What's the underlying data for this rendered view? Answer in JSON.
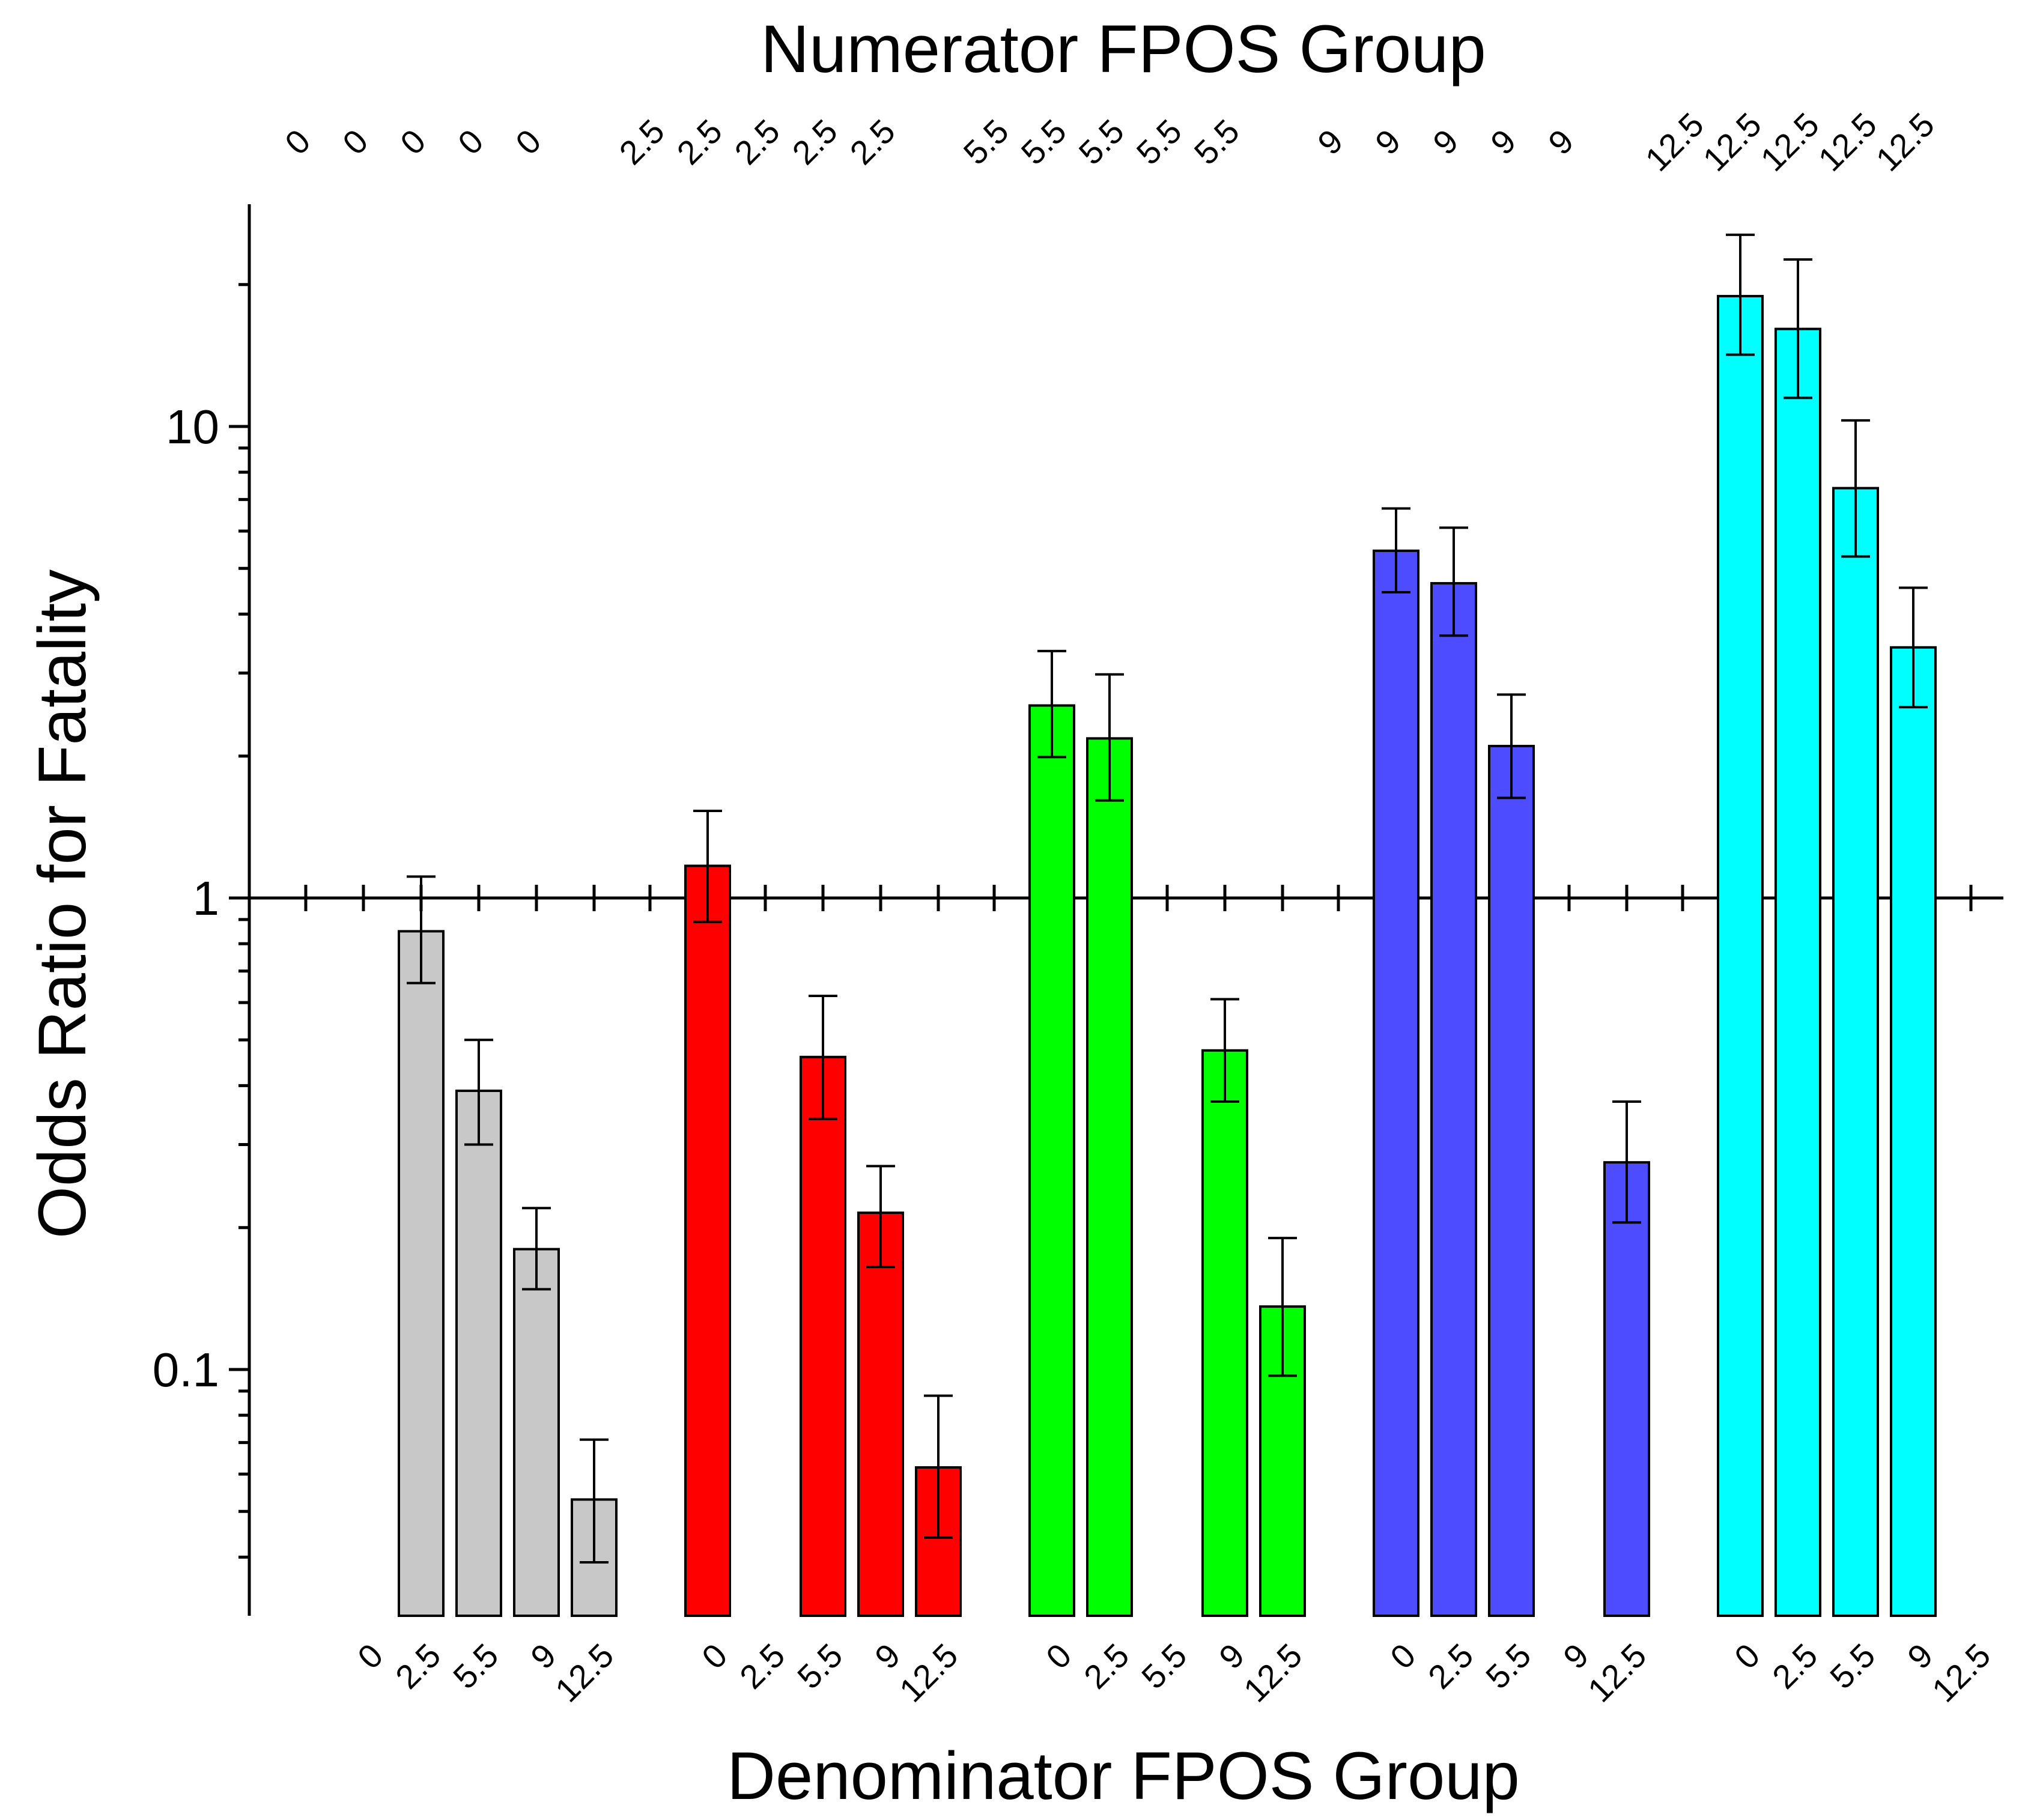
{
  "chart_data": {
    "type": "bar",
    "title": "",
    "top_xlabel": "Numerator FPOS Group",
    "xlabel": "Denominator FPOS Group",
    "ylabel": "Odds Ratio for Fatality",
    "yscale": "log",
    "ylim": [
      0.033,
      26
    ],
    "yticks": [
      {
        "value": 0.1,
        "label": "0.1"
      },
      {
        "value": 1,
        "label": "1"
      },
      {
        "value": 10,
        "label": "10"
      }
    ],
    "reference_line": 1,
    "groups": [
      {
        "numerator": "0",
        "color": "#c8c8c8",
        "numerator_labels": [
          "0",
          "0",
          "0",
          "0",
          "0"
        ],
        "denominator_labels": [
          "0",
          "2.5",
          "5.5",
          "9",
          "12.5"
        ],
        "values": [
          null,
          0.85,
          0.39,
          0.18,
          0.053
        ],
        "err_low": [
          null,
          0.66,
          0.3,
          0.148,
          0.039
        ],
        "err_high": [
          null,
          1.11,
          0.5,
          0.22,
          0.071
        ]
      },
      {
        "numerator": "2.5",
        "color": "#ff0000",
        "numerator_labels": [
          "2.5",
          "2.5",
          "2.5",
          "2.5",
          "2.5"
        ],
        "denominator_labels": [
          "0",
          "2.5",
          "5.5",
          "9",
          "12.5"
        ],
        "values": [
          1.17,
          null,
          0.46,
          0.215,
          0.062
        ],
        "err_low": [
          0.89,
          null,
          0.34,
          0.165,
          0.044
        ],
        "err_high": [
          1.53,
          null,
          0.62,
          0.27,
          0.088
        ]
      },
      {
        "numerator": "5.5",
        "color": "#00ff00",
        "numerator_labels": [
          "5.5",
          "5.5",
          "5.5",
          "5.5",
          "5.5"
        ],
        "denominator_labels": [
          "0",
          "2.5",
          "5.5",
          "9",
          "12.5"
        ],
        "values": [
          2.56,
          2.18,
          null,
          0.475,
          0.136
        ],
        "err_low": [
          1.99,
          1.61,
          null,
          0.37,
          0.097
        ],
        "err_high": [
          3.34,
          2.98,
          null,
          0.61,
          0.19
        ]
      },
      {
        "numerator": "9",
        "color": "#4d4dff",
        "numerator_labels": [
          "9",
          "9",
          "9",
          "9",
          "9"
        ],
        "denominator_labels": [
          "0",
          "2.5",
          "5.5",
          "9",
          "12.5"
        ],
        "values": [
          5.45,
          4.65,
          2.1,
          null,
          0.275
        ],
        "err_low": [
          4.45,
          3.6,
          1.63,
          null,
          0.205
        ],
        "err_high": [
          6.7,
          6.1,
          2.7,
          null,
          0.37
        ]
      },
      {
        "numerator": "12.5",
        "color": "#00ffff",
        "numerator_labels": [
          "12.5",
          "12.5",
          "12.5",
          "12.5",
          "12.5"
        ],
        "denominator_labels": [
          "0",
          "2.5",
          "5.5",
          "9",
          "12.5"
        ],
        "values": [
          18.9,
          16.1,
          7.4,
          3.4,
          null
        ],
        "err_low": [
          14.2,
          11.5,
          5.3,
          2.54,
          null
        ],
        "err_high": [
          25.5,
          22.6,
          10.3,
          4.55,
          null
        ]
      }
    ]
  }
}
